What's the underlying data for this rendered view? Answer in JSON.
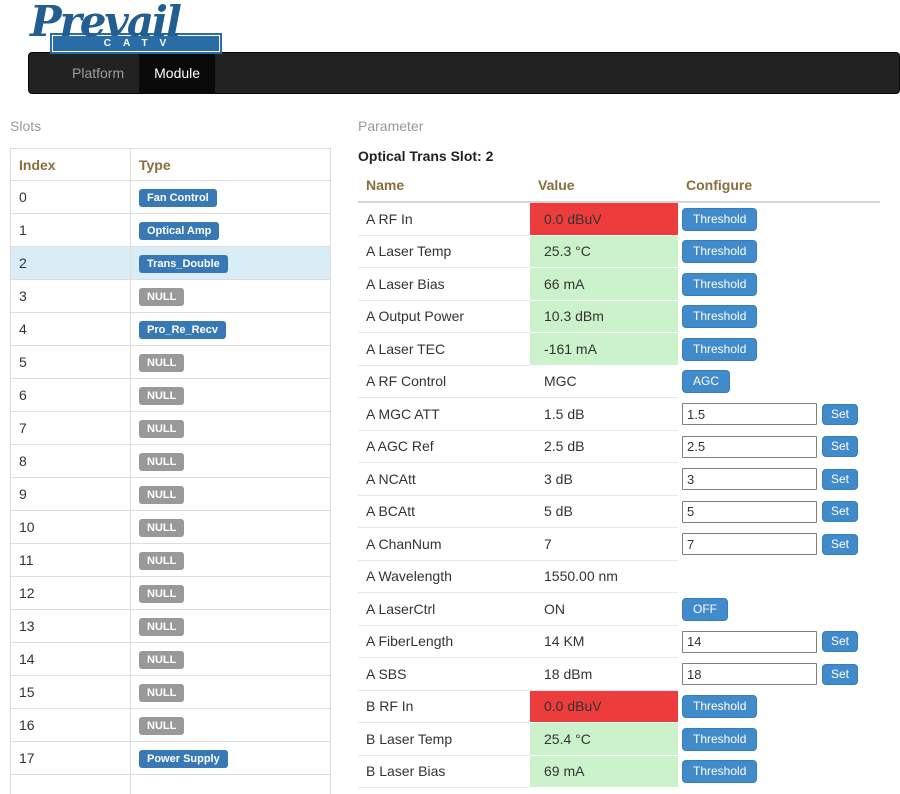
{
  "brand": {
    "name": "Prevail",
    "sub": "CATV",
    "color": "#235e91"
  },
  "navbar": {
    "tabs": [
      {
        "label": "Platform",
        "active": false
      },
      {
        "label": "Module",
        "active": true
      }
    ]
  },
  "slots": {
    "label": "Slots",
    "columns": [
      "Index",
      "Type"
    ],
    "selected_index": "2",
    "rows": [
      {
        "index": "0",
        "type": "Fan Control",
        "kind": "module"
      },
      {
        "index": "1",
        "type": "Optical Amp",
        "kind": "module"
      },
      {
        "index": "2",
        "type": "Trans_Double",
        "kind": "module",
        "selected": true
      },
      {
        "index": "3",
        "type": "NULL",
        "kind": "null"
      },
      {
        "index": "4",
        "type": "Pro_Re_Recv",
        "kind": "module"
      },
      {
        "index": "5",
        "type": "NULL",
        "kind": "null"
      },
      {
        "index": "6",
        "type": "NULL",
        "kind": "null"
      },
      {
        "index": "7",
        "type": "NULL",
        "kind": "null"
      },
      {
        "index": "8",
        "type": "NULL",
        "kind": "null"
      },
      {
        "index": "9",
        "type": "NULL",
        "kind": "null"
      },
      {
        "index": "10",
        "type": "NULL",
        "kind": "null"
      },
      {
        "index": "11",
        "type": "NULL",
        "kind": "null"
      },
      {
        "index": "12",
        "type": "NULL",
        "kind": "null"
      },
      {
        "index": "13",
        "type": "NULL",
        "kind": "null"
      },
      {
        "index": "14",
        "type": "NULL",
        "kind": "null"
      },
      {
        "index": "15",
        "type": "NULL",
        "kind": "null"
      },
      {
        "index": "16",
        "type": "NULL",
        "kind": "null"
      },
      {
        "index": "17",
        "type": "Power Supply",
        "kind": "module"
      },
      {
        "index": "",
        "type": "",
        "kind": "empty"
      }
    ]
  },
  "parameter": {
    "label": "Parameter",
    "title": "Optical Trans Slot: 2",
    "columns": [
      "Name",
      "Value",
      "Configure"
    ],
    "rows": [
      {
        "name": "A RF In",
        "value": "0.0 dBuV",
        "state": "alarm",
        "configure": {
          "type": "button",
          "label": "Threshold"
        }
      },
      {
        "name": "A Laser Temp",
        "value": "25.3 °C",
        "state": "ok",
        "configure": {
          "type": "button",
          "label": "Threshold"
        }
      },
      {
        "name": "A Laser Bias",
        "value": "66 mA",
        "state": "ok",
        "configure": {
          "type": "button",
          "label": "Threshold"
        }
      },
      {
        "name": "A Output Power",
        "value": "10.3 dBm",
        "state": "ok",
        "configure": {
          "type": "button",
          "label": "Threshold"
        }
      },
      {
        "name": "A Laser TEC",
        "value": "-161 mA",
        "state": "ok",
        "configure": {
          "type": "button",
          "label": "Threshold"
        }
      },
      {
        "name": "A RF Control",
        "value": "MGC",
        "state": "plain",
        "configure": {
          "type": "button",
          "label": "AGC"
        }
      },
      {
        "name": "A MGC ATT",
        "value": "1.5 dB",
        "state": "plain",
        "configure": {
          "type": "input",
          "value": "1.5",
          "button": "Set"
        }
      },
      {
        "name": "A AGC Ref",
        "value": "2.5 dB",
        "state": "plain",
        "configure": {
          "type": "input",
          "value": "2.5",
          "button": "Set"
        }
      },
      {
        "name": "A NCAtt",
        "value": "3 dB",
        "state": "plain",
        "configure": {
          "type": "input",
          "value": "3",
          "button": "Set"
        }
      },
      {
        "name": "A BCAtt",
        "value": "5 dB",
        "state": "plain",
        "configure": {
          "type": "input",
          "value": "5",
          "button": "Set"
        }
      },
      {
        "name": "A ChanNum",
        "value": "7",
        "state": "plain",
        "configure": {
          "type": "input",
          "value": "7",
          "button": "Set"
        }
      },
      {
        "name": "A Wavelength",
        "value": "1550.00 nm",
        "state": "plain",
        "configure": {
          "type": "none"
        }
      },
      {
        "name": "A LaserCtrl",
        "value": "ON",
        "state": "plain",
        "configure": {
          "type": "button",
          "label": "OFF"
        }
      },
      {
        "name": "A FiberLength",
        "value": "14 KM",
        "state": "plain",
        "configure": {
          "type": "input",
          "value": "14",
          "button": "Set"
        }
      },
      {
        "name": "A SBS",
        "value": "18 dBm",
        "state": "plain",
        "configure": {
          "type": "input",
          "value": "18",
          "button": "Set"
        }
      },
      {
        "name": "B RF In",
        "value": "0.0 dBuV",
        "state": "alarm",
        "configure": {
          "type": "button",
          "label": "Threshold"
        }
      },
      {
        "name": "B Laser Temp",
        "value": "25.4 °C",
        "state": "ok",
        "configure": {
          "type": "button",
          "label": "Threshold"
        }
      },
      {
        "name": "B Laser Bias",
        "value": "69 mA",
        "state": "ok",
        "configure": {
          "type": "button",
          "label": "Threshold"
        }
      }
    ]
  },
  "colors": {
    "alarm_bg": "#ed3c3c",
    "ok_bg": "#ccf2cc",
    "button_blue": "#428bca",
    "badge_blue": "#3879b5",
    "badge_gray": "#999999",
    "table_header_text": "#8a6d3b",
    "selected_row_bg": "#d9edf7",
    "navbar_bg": "#222222"
  }
}
